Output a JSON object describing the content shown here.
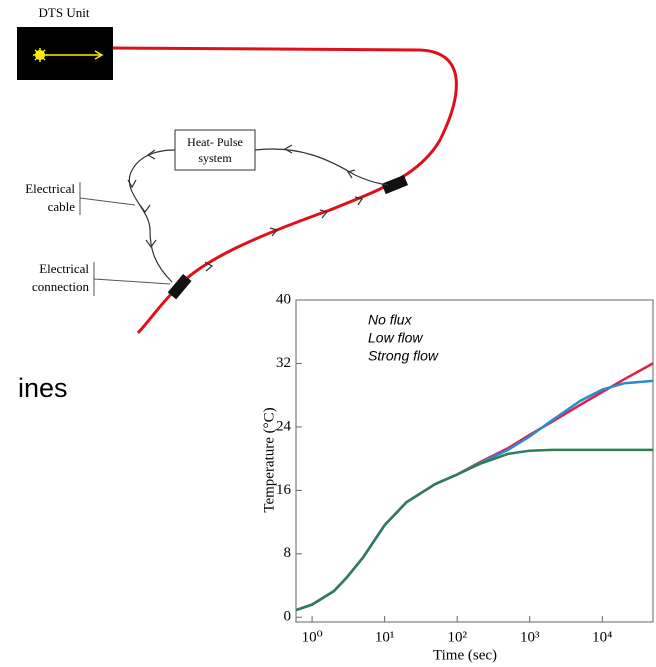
{
  "diagram": {
    "dts_unit": "DTS Unit",
    "heat_pulse": [
      "Heat- Pulse",
      "system"
    ],
    "cable_label": [
      "Electrical",
      "cable"
    ],
    "connection_label": [
      "Electrical",
      "connection"
    ]
  },
  "slide_text": "ines",
  "chart_data": {
    "type": "line",
    "ylabel": "Temperature (°C)",
    "xlabel": "Time (sec)",
    "xscale": "log",
    "x": [
      0.6,
      1,
      2,
      3,
      5,
      10,
      20,
      50,
      100,
      200,
      500,
      1000,
      2000,
      5000,
      10000,
      20000,
      50000
    ],
    "series": [
      {
        "name": "No flux",
        "color": "#e0204a",
        "values": [
          0.9,
          1.6,
          3.3,
          5,
          7.5,
          11.6,
          14.5,
          16.8,
          18,
          19.5,
          21.3,
          23,
          24.6,
          26.8,
          28.4,
          30,
          32
        ]
      },
      {
        "name": "Low flow",
        "color": "#2a8ccc",
        "values": [
          0.9,
          1.6,
          3.3,
          5,
          7.5,
          11.6,
          14.5,
          16.8,
          18,
          19.4,
          21.1,
          22.8,
          24.8,
          27.3,
          28.7,
          29.5,
          29.8
        ]
      },
      {
        "name": "Strong flow",
        "color": "#2e7d55",
        "values": [
          0.9,
          1.6,
          3.3,
          5,
          7.5,
          11.6,
          14.5,
          16.8,
          18,
          19.3,
          20.6,
          21,
          21.1,
          21.1,
          21.1,
          21.1,
          21.1
        ]
      }
    ],
    "xlim": [
      0.6,
      50000
    ],
    "xticks": [
      {
        "value": 1,
        "label": "10⁰"
      },
      {
        "value": 10,
        "label": "10¹"
      },
      {
        "value": 100,
        "label": "10²"
      },
      {
        "value": 1000,
        "label": "10³"
      },
      {
        "value": 10000,
        "label": "10⁴"
      }
    ],
    "ylim": [
      -0.6,
      40
    ],
    "yticks": [
      0,
      8,
      16,
      24,
      32,
      40
    ]
  }
}
